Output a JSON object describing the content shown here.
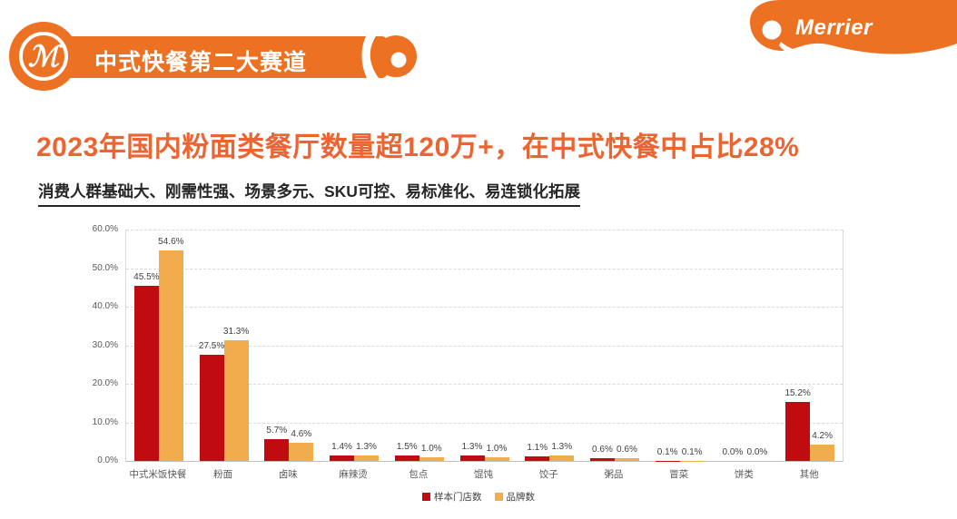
{
  "header": {
    "banner_title": "中式快餐第二大赛道",
    "brand": "Merrier",
    "banner_color": "#ED7123"
  },
  "title": {
    "text": "2023年国内粉面类餐厅数量超120万+，在中式快餐中占比28%",
    "color": "#EB6532"
  },
  "subtitle": {
    "text": "消费人群基础大、刚需性强、场景多元、SKU可控、易标准化、易连锁化拓展"
  },
  "chart_data": {
    "type": "bar",
    "categories": [
      "中式米饭快餐",
      "粉面",
      "卤味",
      "麻辣烫",
      "包点",
      "馄饨",
      "饺子",
      "粥品",
      "冒菜",
      "饼类",
      "其他"
    ],
    "series": [
      {
        "name": "样本门店数",
        "color": "#C00B10",
        "values": [
          45.5,
          27.5,
          5.7,
          1.4,
          1.5,
          1.3,
          1.1,
          0.6,
          0.1,
          0.0,
          15.2
        ]
      },
      {
        "name": "品牌数",
        "color": "#F0AC4D",
        "values": [
          54.6,
          31.3,
          4.6,
          1.3,
          1.0,
          1.0,
          1.3,
          0.6,
          0.1,
          0.0,
          4.2
        ]
      }
    ],
    "title": "",
    "xlabel": "",
    "ylabel": "",
    "ylim": [
      0,
      60
    ],
    "ytick_step": 10,
    "ytick_labels": [
      "0.0%",
      "10.0%",
      "20.0%",
      "30.0%",
      "40.0%",
      "50.0%",
      "60.0%"
    ],
    "grid": "horizontal-dashed",
    "legend_position": "bottom",
    "data_labels": "one-decimal-percent"
  }
}
